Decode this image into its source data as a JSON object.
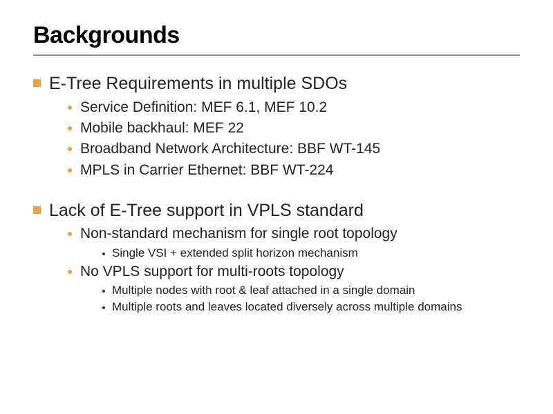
{
  "slide": {
    "title": "Backgrounds",
    "colors": {
      "accent": "#e8a33d",
      "text": "#222222",
      "rule": "#888888",
      "background": "#ffffff"
    },
    "fontsizes": {
      "title": 34,
      "l1": 25,
      "l2": 21,
      "l3": 17
    },
    "sections": [
      {
        "heading": "E-Tree Requirements in multiple SDOs",
        "items": [
          {
            "text": "Service Definition: MEF 6.1, MEF 10.2"
          },
          {
            "text": "Mobile backhaul: MEF 22"
          },
          {
            "text": "Broadband Network Architecture: BBF WT-145"
          },
          {
            "text": "MPLS in Carrier Ethernet: BBF WT-224"
          }
        ]
      },
      {
        "heading": "Lack of E-Tree support in VPLS standard",
        "items": [
          {
            "text": "Non-standard mechanism for single root topology",
            "sub": [
              "Single VSI + extended split horizon mechanism"
            ]
          },
          {
            "text": "No VPLS support for multi-roots topology",
            "sub": [
              "Multiple nodes with root & leaf attached in a single domain",
              "Multiple roots and leaves located diversely across multiple domains"
            ]
          }
        ]
      }
    ]
  }
}
